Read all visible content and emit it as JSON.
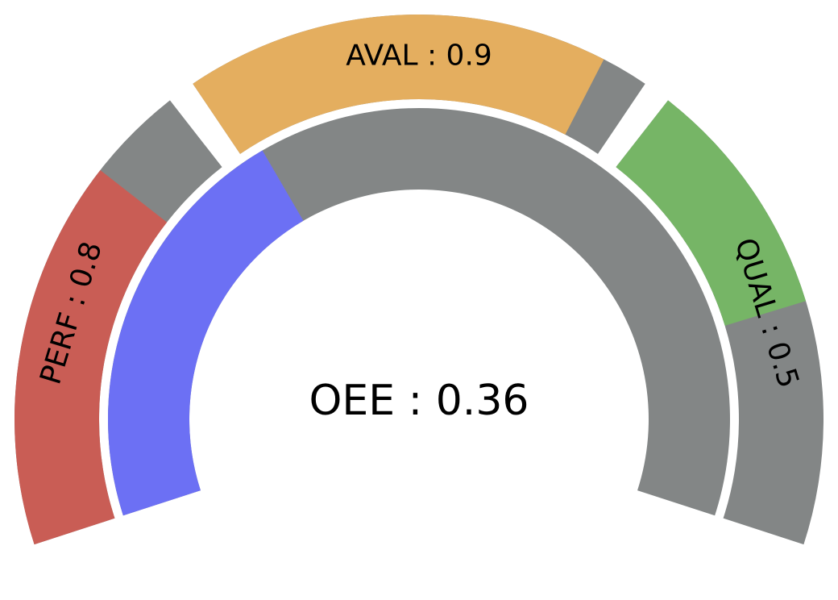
{
  "chart_data": {
    "type": "gauge",
    "center": {
      "label": "OEE : 0.36",
      "value": 0.36
    },
    "segments": [
      {
        "name": "PERF",
        "value": 0.8,
        "label": "PERF : 0.8"
      },
      {
        "name": "AVAL",
        "value": 0.9,
        "label": "AVAL : 0.9"
      },
      {
        "name": "QUAL",
        "value": 0.5,
        "label": "QUAL : 0.5"
      }
    ],
    "range": [
      0,
      1
    ]
  },
  "colors": {
    "perf": "#c95d55",
    "aval": "#e4ae5f",
    "qual": "#76b566",
    "oee": "#6c70f4",
    "track": "#838686"
  }
}
